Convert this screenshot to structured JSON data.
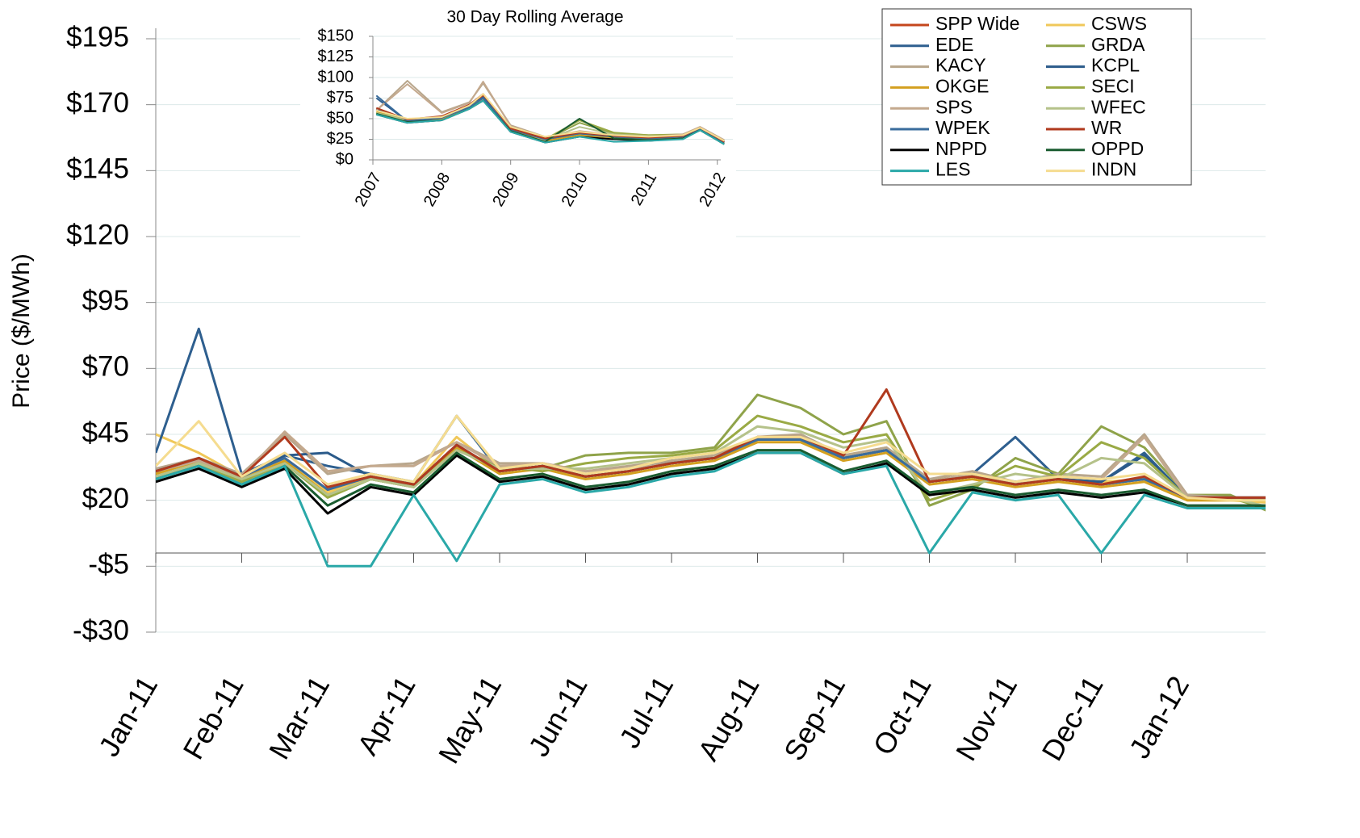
{
  "chart_data": [
    {
      "type": "line",
      "y_label": "Price ($/MWh)",
      "categories": [
        "Jan-11",
        null,
        "Feb-11",
        null,
        "Mar-11",
        null,
        "Apr-11",
        null,
        "May-11",
        null,
        "Jun-11",
        null,
        "Jul-11",
        null,
        "Aug-11",
        null,
        "Sep-11",
        null,
        "Oct-11",
        null,
        "Nov-11",
        null,
        "Dec-11",
        null,
        "Jan-12",
        null,
        null
      ],
      "ylim": [
        -30,
        195
      ],
      "yticks": [
        {
          "value": -30,
          "label": "-$30"
        },
        {
          "value": -5,
          "label": "-$5"
        },
        {
          "value": 20,
          "label": "$20"
        },
        {
          "value": 45,
          "label": "$45"
        },
        {
          "value": 70,
          "label": "$70"
        },
        {
          "value": 95,
          "label": "$95"
        },
        {
          "value": 120,
          "label": "$120"
        },
        {
          "value": 145,
          "label": "$145"
        },
        {
          "value": 170,
          "label": "$170"
        },
        {
          "value": 195,
          "label": "$195"
        }
      ],
      "grid": true,
      "legend": "top-right",
      "series": [
        {
          "name": "SPP Wide",
          "color": "#c4461c",
          "values": [
            31,
            36,
            29,
            36,
            24,
            29,
            26,
            41,
            31,
            33,
            29,
            31,
            34,
            36,
            43,
            43,
            36,
            39,
            27,
            29,
            26,
            28,
            26,
            28,
            21,
            21,
            21
          ]
        },
        {
          "name": "CSWS",
          "color": "#f0c85a",
          "values": [
            45,
            38,
            29,
            36,
            23,
            29,
            26,
            44,
            31,
            33,
            29,
            31,
            34,
            36,
            44,
            43,
            37,
            40,
            28,
            29,
            26,
            28,
            27,
            28,
            20,
            20,
            19
          ]
        },
        {
          "name": "EDE",
          "color": "#2e5f8f",
          "values": [
            38,
            85,
            30,
            37,
            33,
            30,
            27,
            52,
            31,
            33,
            29,
            31,
            35,
            36,
            43,
            43,
            36,
            39,
            27,
            30,
            44,
            28,
            27,
            38,
            21,
            21,
            20
          ]
        },
        {
          "name": "GRDA",
          "color": "#8fa34a",
          "values": [
            29,
            34,
            28,
            34,
            22,
            28,
            25,
            39,
            33,
            32,
            37,
            38,
            38,
            40,
            60,
            55,
            45,
            50,
            18,
            24,
            36,
            30,
            48,
            40,
            22,
            22,
            15
          ]
        },
        {
          "name": "KACY",
          "color": "#b8a68c",
          "values": [
            32,
            36,
            30,
            45,
            30,
            33,
            34,
            42,
            34,
            34,
            31,
            33,
            35,
            37,
            44,
            45,
            37,
            40,
            28,
            31,
            27,
            30,
            29,
            45,
            22,
            21,
            21
          ]
        },
        {
          "name": "KCPL",
          "color": "#2a5a8a",
          "values": [
            31,
            36,
            29,
            37,
            38,
            29,
            26,
            41,
            31,
            33,
            29,
            31,
            34,
            36,
            43,
            43,
            36,
            39,
            27,
            29,
            27,
            28,
            27,
            37,
            21,
            21,
            21
          ]
        },
        {
          "name": "OKGE",
          "color": "#d4a020",
          "values": [
            30,
            35,
            28,
            35,
            22,
            28,
            25,
            40,
            30,
            32,
            28,
            30,
            33,
            35,
            42,
            42,
            35,
            38,
            26,
            28,
            25,
            27,
            25,
            27,
            20,
            20,
            20
          ]
        },
        {
          "name": "SECI",
          "color": "#9aaa45",
          "values": [
            29,
            34,
            27,
            34,
            21,
            28,
            25,
            39,
            33,
            31,
            34,
            36,
            37,
            39,
            52,
            48,
            42,
            45,
            20,
            25,
            33,
            29,
            42,
            36,
            21,
            21,
            16
          ]
        },
        {
          "name": "SPS",
          "color": "#c4a98e",
          "values": [
            31,
            35,
            29,
            46,
            31,
            33,
            33,
            42,
            33,
            34,
            31,
            32,
            34,
            36,
            43,
            44,
            36,
            39,
            27,
            30,
            26,
            29,
            28,
            44,
            21,
            21,
            21
          ]
        },
        {
          "name": "WFEC",
          "color": "#b5c28a",
          "values": [
            29,
            34,
            28,
            34,
            22,
            28,
            25,
            39,
            32,
            32,
            32,
            34,
            36,
            38,
            48,
            46,
            40,
            43,
            22,
            26,
            30,
            28,
            36,
            34,
            21,
            21,
            17
          ]
        },
        {
          "name": "WPEK",
          "color": "#3a6c9c",
          "values": [
            31,
            36,
            29,
            36,
            24,
            29,
            26,
            41,
            31,
            33,
            29,
            31,
            34,
            36,
            43,
            43,
            36,
            39,
            27,
            29,
            26,
            28,
            26,
            28,
            21,
            21,
            21
          ]
        },
        {
          "name": "WR",
          "color": "#b03a1e",
          "values": [
            31,
            36,
            29,
            44,
            25,
            29,
            26,
            41,
            31,
            33,
            29,
            31,
            34,
            36,
            44,
            44,
            37,
            62,
            27,
            29,
            26,
            28,
            26,
            29,
            21,
            21,
            21
          ]
        },
        {
          "name": "NPPD",
          "color": "#000000",
          "values": [
            27,
            32,
            25,
            32,
            15,
            25,
            22,
            37,
            27,
            29,
            24,
            26,
            30,
            32,
            38,
            38,
            30,
            34,
            22,
            24,
            21,
            23,
            21,
            23,
            18,
            18,
            18
          ]
        },
        {
          "name": "OPPD",
          "color": "#1a5c30",
          "values": [
            28,
            33,
            26,
            33,
            18,
            26,
            23,
            38,
            28,
            30,
            25,
            27,
            31,
            33,
            39,
            39,
            31,
            35,
            23,
            25,
            22,
            24,
            22,
            24,
            18,
            18,
            18
          ]
        },
        {
          "name": "LES",
          "color": "#2aa8a8",
          "values": [
            28,
            33,
            26,
            33,
            -5,
            -5,
            22,
            -3,
            26,
            28,
            23,
            25,
            29,
            31,
            38,
            38,
            30,
            33,
            0,
            23,
            20,
            22,
            0,
            22,
            17,
            17,
            17
          ]
        },
        {
          "name": "INDN",
          "color": "#f5dc90",
          "values": [
            33,
            50,
            29,
            38,
            26,
            30,
            27,
            52,
            32,
            34,
            30,
            32,
            36,
            38,
            44,
            44,
            38,
            42,
            30,
            30,
            27,
            29,
            28,
            30,
            21,
            20,
            20
          ]
        }
      ]
    },
    {
      "type": "line",
      "title": "30 Day Rolling Average",
      "x": [
        2007.05,
        2007.5,
        2008,
        2008.4,
        2008.6,
        2009,
        2009.5,
        2010,
        2010.5,
        2011,
        2011.5,
        2011.75,
        2012.1
      ],
      "xlim": [
        2007,
        2012.05
      ],
      "xticks": [
        2007,
        2008,
        2009,
        2010,
        2011,
        2012
      ],
      "ylim": [
        0,
        150
      ],
      "yticks": [
        {
          "value": 0,
          "label": "$0"
        },
        {
          "value": 25,
          "label": "$25"
        },
        {
          "value": 50,
          "label": "$50"
        },
        {
          "value": 75,
          "label": "$75"
        },
        {
          "value": 100,
          "label": "$100"
        },
        {
          "value": 125,
          "label": "$125"
        },
        {
          "value": 150,
          "label": "$150"
        }
      ],
      "grid": true,
      "series": [
        {
          "values": [
            62,
            48,
            52,
            66,
            78,
            38,
            26,
            32,
            28,
            27,
            29,
            38,
            22
          ]
        },
        {
          "values": [
            58,
            48,
            50,
            64,
            74,
            36,
            24,
            30,
            28,
            25,
            28,
            37,
            21
          ]
        },
        {
          "values": [
            75,
            47,
            51,
            65,
            76,
            37,
            25,
            33,
            28,
            26,
            29,
            38,
            22
          ]
        },
        {
          "values": [
            57,
            49,
            51,
            66,
            74,
            39,
            24,
            45,
            32,
            30,
            30,
            37,
            21
          ]
        },
        {
          "values": [
            60,
            96,
            58,
            70,
            93,
            42,
            28,
            34,
            30,
            28,
            31,
            40,
            24
          ]
        },
        {
          "values": [
            62,
            47,
            50,
            64,
            74,
            37,
            25,
            31,
            28,
            26,
            28,
            37,
            21
          ]
        },
        {
          "values": [
            58,
            48,
            50,
            63,
            72,
            35,
            23,
            30,
            27,
            25,
            27,
            36,
            20
          ]
        },
        {
          "values": [
            57,
            49,
            51,
            66,
            74,
            39,
            25,
            48,
            33,
            30,
            31,
            38,
            21
          ]
        },
        {
          "values": [
            60,
            92,
            57,
            69,
            95,
            41,
            27,
            35,
            30,
            28,
            31,
            40,
            24
          ]
        },
        {
          "values": [
            57,
            48,
            51,
            65,
            73,
            38,
            24,
            40,
            31,
            29,
            29,
            37,
            21
          ]
        },
        {
          "values": [
            78,
            47,
            51,
            64,
            75,
            37,
            25,
            32,
            28,
            26,
            28,
            37,
            21
          ]
        },
        {
          "values": [
            63,
            49,
            53,
            67,
            80,
            38,
            26,
            33,
            29,
            27,
            29,
            39,
            22
          ]
        },
        {
          "values": [
            55,
            45,
            48,
            62,
            72,
            34,
            21,
            28,
            25,
            23,
            26,
            36,
            19
          ]
        },
        {
          "values": [
            56,
            46,
            48,
            62,
            72,
            35,
            22,
            50,
            26,
            24,
            26,
            36,
            19
          ]
        },
        {
          "values": [
            55,
            45,
            48,
            62,
            72,
            34,
            21,
            28,
            22,
            23,
            25,
            36,
            19
          ]
        },
        {
          "values": [
            60,
            50,
            52,
            66,
            80,
            40,
            28,
            34,
            30,
            28,
            30,
            39,
            23
          ]
        }
      ]
    }
  ]
}
